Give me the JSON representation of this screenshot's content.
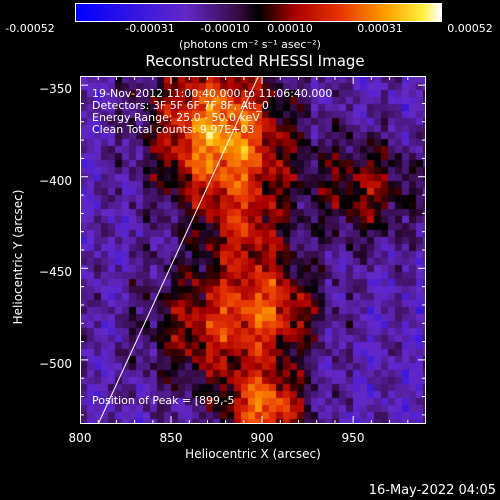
{
  "colorbar": {
    "tick_labels": [
      "-0.00052",
      "-0.00031",
      "-0.00010",
      "0.00010",
      "0.00031",
      "0.00052"
    ],
    "units": "(photons cm⁻² s⁻¹ asec⁻²)"
  },
  "chart_data": {
    "type": "heatmap",
    "title": "Reconstructed RHESSI Image",
    "xlabel": "Heliocentric X (arcsec)",
    "ylabel": "Heliocentric Y (arcsec)",
    "xlim": [
      800,
      990
    ],
    "ylim": [
      -535,
      -345
    ],
    "x_ticks": [
      800,
      850,
      900,
      950
    ],
    "x_tick_labels": [
      "800",
      "850",
      "900",
      "950"
    ],
    "y_ticks": [
      -500,
      -450,
      -400,
      -350
    ],
    "y_tick_labels": [
      "−500",
      "−450",
      "−400",
      "−350"
    ],
    "value_range": [
      -0.00052,
      0.00052
    ],
    "info_lines": [
      "19-Nov-2012 11:00:40.000 to 11:06:40.000",
      "Detectors: 3F 5F 6F 7F 8F, Att_0",
      "Energy Range: 25.0 - 50.0 keV",
      "Clean    Total counts: 9.97E+03"
    ],
    "peak_label": "Position of Peak = [899,-5",
    "limb_line": [
      [
        810,
        -535
      ],
      [
        898,
        -345
      ]
    ]
  },
  "footer": {
    "date": "16-May-2022 04:05"
  }
}
